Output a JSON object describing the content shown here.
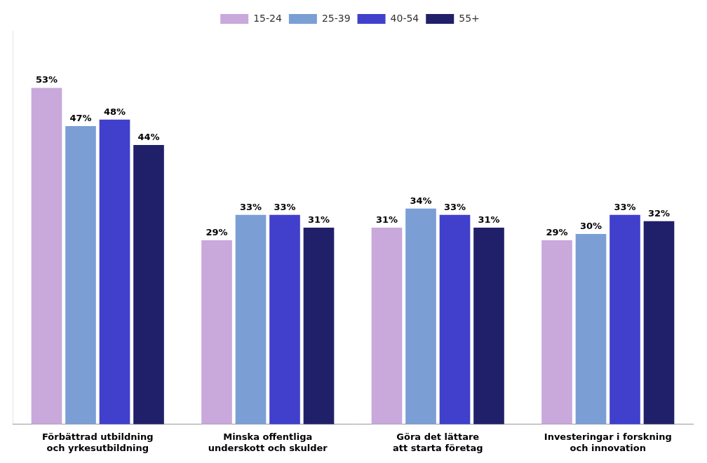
{
  "chart_data": {
    "type": "bar",
    "categories": [
      "Förbättrad utbildning\noch yrkesutbildning",
      "Minska offentliga\nunderskott och skulder",
      "Göra det lättare\natt starta företag",
      "Investeringar i forskning\noch innovation"
    ],
    "series": [
      {
        "name": "15-24",
        "color": "#C9A8DC",
        "values": [
          53,
          29,
          31,
          29
        ],
        "value_labels": [
          "53%",
          "29%",
          "31%",
          "29%"
        ]
      },
      {
        "name": "25-39",
        "color": "#7B9FD4",
        "values": [
          47,
          33,
          34,
          30
        ],
        "value_labels": [
          "47%",
          "33%",
          "34%",
          "30%"
        ]
      },
      {
        "name": "40-54",
        "color": "#4040CC",
        "values": [
          48,
          33,
          33,
          33
        ],
        "value_labels": [
          "48%",
          "33%",
          "33%",
          "33%"
        ]
      },
      {
        "name": "55+",
        "color": "#20206A",
        "values": [
          44,
          31,
          31,
          32
        ],
        "value_labels": [
          "44%",
          "31%",
          "31%",
          "32%"
        ]
      }
    ],
    "ylim": [
      0,
      62
    ],
    "grid": false,
    "legend": "top",
    "data_labels": true,
    "tick_labels": "x"
  }
}
